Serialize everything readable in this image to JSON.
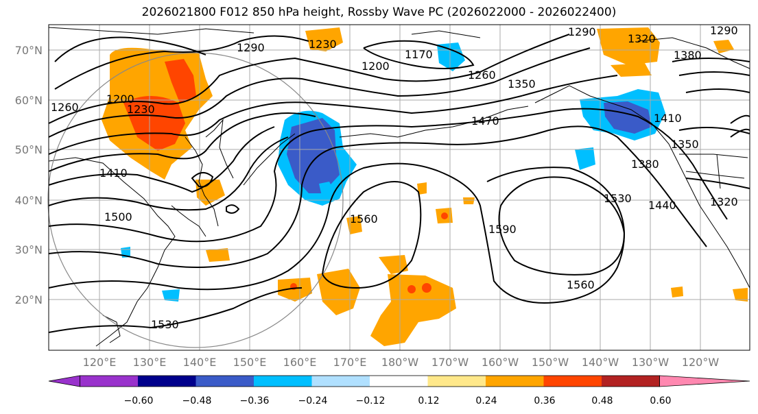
{
  "title": "2026021800 F012 850 hPa height, Rossby Wave PC (2026022000 - 2026022400)",
  "lat_labels": [
    "70°N",
    "60°N",
    "50°N",
    "40°N",
    "30°N",
    "20°N"
  ],
  "lon_labels": [
    "120°E",
    "130°E",
    "140°E",
    "150°E",
    "160°E",
    "170°E",
    "180°W",
    "170°W",
    "160°W",
    "150°W",
    "140°W",
    "130°W",
    "120°W"
  ],
  "contour_labels": [
    "1290",
    "1230",
    "1170",
    "1200",
    "1260",
    "1350",
    "1290",
    "1320",
    "1290",
    "1380",
    "1200",
    "1230",
    "1260",
    "1410",
    "1410",
    "1350",
    "1470",
    "1500",
    "1560",
    "1590",
    "1380",
    "1530",
    "1440",
    "1320",
    "1560",
    "1530"
  ],
  "colorbar": {
    "ticks": [
      "−0.60",
      "−0.48",
      "−0.36",
      "−0.24",
      "−0.12",
      "0.12",
      "0.24",
      "0.36",
      "0.48",
      "0.60"
    ],
    "colors": [
      "#9932cc",
      "#00008b",
      "#3a5bc8",
      "#00bfff",
      "#b0e0ff",
      "#ffffff",
      "#ffe88a",
      "#ffa500",
      "#ff4500",
      "#b22222",
      "#ff88b0"
    ]
  },
  "colors": {
    "grid": "#aaaaaa",
    "coast": "#000000",
    "contour": "#000000"
  }
}
